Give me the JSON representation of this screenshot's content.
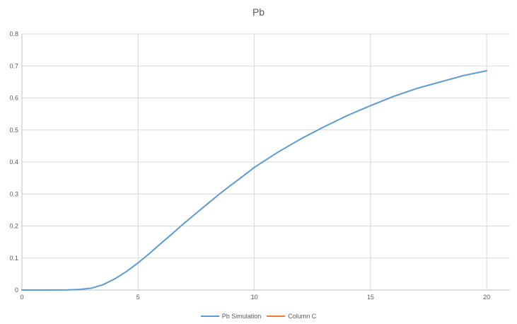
{
  "chart_data": {
    "type": "line",
    "title": "Pb",
    "xlabel": "",
    "ylabel": "",
    "xlim": [
      0,
      21
    ],
    "ylim": [
      0,
      0.8
    ],
    "x_ticks": [
      0,
      5,
      10,
      15,
      20
    ],
    "y_ticks": [
      0,
      0.1,
      0.2,
      0.3,
      0.4,
      0.5,
      0.6,
      0.7,
      0.8
    ],
    "x_tick_labels": [
      "0",
      "5",
      "10",
      "15",
      "20"
    ],
    "y_tick_labels": [
      "0",
      "0.1",
      "0.2",
      "0.3",
      "0.4",
      "0.5",
      "0.6",
      "0.7",
      "0.8"
    ],
    "grid": true,
    "legend_position": "bottom",
    "series": [
      {
        "name": "Pb Simulation",
        "color": "#5b9bd5",
        "x": [
          0,
          1,
          2,
          2.5,
          3,
          3.5,
          4,
          4.5,
          5,
          5.5,
          6,
          6.5,
          7,
          7.5,
          8,
          8.5,
          9,
          9.5,
          10,
          11,
          12,
          13,
          14,
          15,
          16,
          17,
          18,
          19,
          20
        ],
        "y": [
          0,
          0,
          0.0005,
          0.002,
          0.006,
          0.017,
          0.035,
          0.058,
          0.085,
          0.115,
          0.147,
          0.178,
          0.21,
          0.24,
          0.27,
          0.3,
          0.328,
          0.355,
          0.383,
          0.43,
          0.472,
          0.51,
          0.545,
          0.576,
          0.605,
          0.63,
          0.65,
          0.67,
          0.685
        ]
      },
      {
        "name": "Column C",
        "color": "#ed7d31",
        "x": [],
        "y": []
      }
    ]
  }
}
